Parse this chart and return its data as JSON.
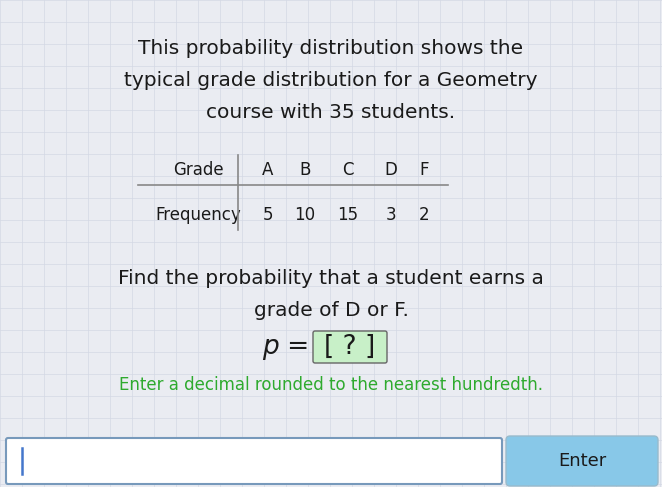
{
  "background_color": "#eaecf2",
  "title_line1": "This probability distribution shows the",
  "title_line2": "typical grade distribution for a Geometry",
  "title_line3": "course with 35 students.",
  "title_fontsize": 14.5,
  "title_color": "#1a1a1a",
  "table_headers": [
    "Grade",
    "A",
    "B",
    "C",
    "D",
    "F"
  ],
  "table_row_label": "Frequency",
  "table_values": [
    5,
    10,
    15,
    3,
    2
  ],
  "table_fontsize": 12,
  "question_line1": "Find the probability that a student earns a",
  "question_line2": "grade of D or F.",
  "question_fontsize": 14.5,
  "question_color": "#1a1a1a",
  "formula_prefix": "p = ",
  "formula_bracket": "[ ? ]",
  "formula_fontsize": 19,
  "formula_color": "#1a1a1a",
  "bracket_bg_color": "#c8f0c8",
  "hint_text": "Enter a decimal rounded to the nearest hundredth.",
  "hint_color": "#2eaa2e",
  "hint_fontsize": 12,
  "input_box_color": "#ffffff",
  "input_box_border": "#7799bb",
  "enter_button_color": "#88c8e8",
  "enter_button_text": "Enter",
  "enter_button_text_color": "#1a1a1a",
  "grid_color": "#d4d8e4",
  "cursor_color": "#4477cc",
  "fig_width": 6.62,
  "fig_height": 4.87,
  "dpi": 100
}
